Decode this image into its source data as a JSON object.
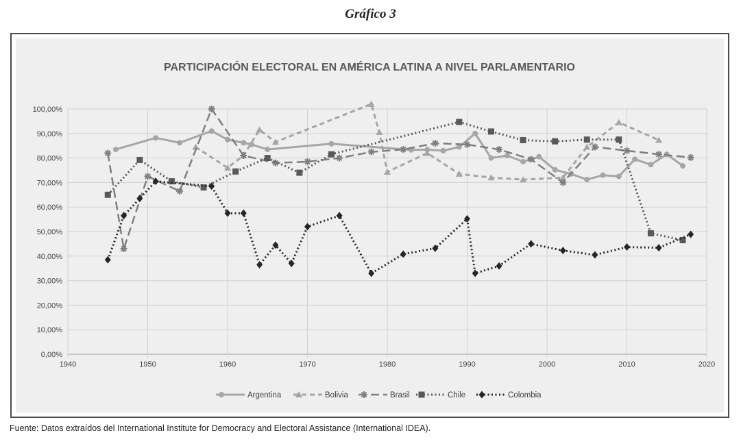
{
  "caption": "Gráfico 3",
  "source": "Fuente: Datos extraídos del International Institute for Democracy and Electoral Assistance (International IDEA).",
  "chart_data": {
    "type": "line",
    "title": "PARTICIPACIÓN ELECTORAL EN AMÉRICA LATINA A NIVEL PARLAMENTARIO",
    "xlabel": "",
    "ylabel": "",
    "xlim": [
      1940,
      2020
    ],
    "ylim": [
      0,
      100
    ],
    "x_ticks": [
      "1940",
      "1950",
      "1960",
      "1970",
      "1980",
      "1990",
      "2000",
      "2010",
      "2020"
    ],
    "y_ticks": [
      "0,00%",
      "10,00%",
      "20,00%",
      "30,00%",
      "40,00%",
      "50,00%",
      "60,00%",
      "70,00%",
      "80,00%",
      "90,00%",
      "100,00%"
    ],
    "grid": true,
    "legend_position": "bottom",
    "series": [
      {
        "name": "Argentina",
        "color": "#a6a6a6",
        "dash": "solid",
        "marker": "circle",
        "points": [
          [
            1946,
            83.5
          ],
          [
            1951,
            88.2
          ],
          [
            1954,
            86.2
          ],
          [
            1958,
            91.0
          ],
          [
            1960,
            87.5
          ],
          [
            1962,
            86.2
          ],
          [
            1963,
            85.5
          ],
          [
            1965,
            83.5
          ],
          [
            1973,
            85.8
          ],
          [
            1983,
            83.3
          ],
          [
            1985,
            83.4
          ],
          [
            1987,
            83.0
          ],
          [
            1989,
            84.5
          ],
          [
            1991,
            90.0
          ],
          [
            1993,
            80.0
          ],
          [
            1995,
            81.0
          ],
          [
            1997,
            78.5
          ],
          [
            1999,
            80.5
          ],
          [
            2001,
            75.2
          ],
          [
            2003,
            73.5
          ],
          [
            2005,
            71.2
          ],
          [
            2007,
            73.0
          ],
          [
            2009,
            72.5
          ],
          [
            2011,
            79.5
          ],
          [
            2013,
            77.3
          ],
          [
            2015,
            81.5
          ],
          [
            2017,
            76.8
          ]
        ]
      },
      {
        "name": "Bolivia",
        "color": "#a6a6a6",
        "dash": "dash",
        "marker": "triangle",
        "points": [
          [
            1956,
            84.5
          ],
          [
            1960,
            76.0
          ],
          [
            1962,
            81.0
          ],
          [
            1964,
            91.5
          ],
          [
            1966,
            86.5
          ],
          [
            1978,
            102.0
          ],
          [
            1979,
            90.5
          ],
          [
            1980,
            74.3
          ],
          [
            1985,
            82.0
          ],
          [
            1989,
            73.5
          ],
          [
            1993,
            72.0
          ],
          [
            1997,
            71.2
          ],
          [
            2002,
            72.0
          ],
          [
            2005,
            84.5
          ],
          [
            2009,
            94.5
          ],
          [
            2014,
            87.3
          ]
        ]
      },
      {
        "name": "Brasil",
        "color": "#7f7f7f",
        "dash": "longdash",
        "marker": "star",
        "points": [
          [
            1945,
            82.0
          ],
          [
            1947,
            43.0
          ],
          [
            1950,
            72.5
          ],
          [
            1954,
            66.5
          ],
          [
            1958,
            100.0
          ],
          [
            1962,
            81.0
          ],
          [
            1966,
            78.0
          ],
          [
            1970,
            78.5
          ],
          [
            1974,
            80.0
          ],
          [
            1978,
            82.5
          ],
          [
            1982,
            83.5
          ],
          [
            1986,
            86.0
          ],
          [
            1990,
            85.5
          ],
          [
            1994,
            83.5
          ],
          [
            1998,
            79.5
          ],
          [
            2002,
            70.0
          ],
          [
            2006,
            84.5
          ],
          [
            2010,
            83.0
          ],
          [
            2014,
            81.5
          ],
          [
            2018,
            80.2
          ]
        ]
      },
      {
        "name": "Chile",
        "color": "#595959",
        "dash": "dot",
        "marker": "square",
        "points": [
          [
            1945,
            65.0
          ],
          [
            1949,
            79.2
          ],
          [
            1953,
            70.5
          ],
          [
            1957,
            68.0
          ],
          [
            1961,
            74.5
          ],
          [
            1965,
            80.0
          ],
          [
            1969,
            74.0
          ],
          [
            1973,
            81.5
          ],
          [
            1989,
            94.7
          ],
          [
            1993,
            90.8
          ],
          [
            1997,
            87.3
          ],
          [
            2001,
            86.8
          ],
          [
            2005,
            87.5
          ],
          [
            2009,
            87.5
          ],
          [
            2013,
            49.3
          ],
          [
            2017,
            46.5
          ]
        ]
      },
      {
        "name": "Colombia",
        "color": "#262626",
        "dash": "dot",
        "marker": "diamond",
        "points": [
          [
            1945,
            38.5
          ],
          [
            1947,
            56.5
          ],
          [
            1949,
            63.5
          ],
          [
            1951,
            70.5
          ],
          [
            1958,
            68.5
          ],
          [
            1960,
            57.5
          ],
          [
            1962,
            57.5
          ],
          [
            1964,
            36.5
          ],
          [
            1966,
            44.5
          ],
          [
            1968,
            37.0
          ],
          [
            1970,
            52.0
          ],
          [
            1974,
            56.5
          ],
          [
            1978,
            33.0
          ],
          [
            1982,
            40.8
          ],
          [
            1986,
            43.2
          ],
          [
            1990,
            55.2
          ],
          [
            1991,
            33.0
          ],
          [
            1994,
            36.0
          ],
          [
            1998,
            45.0
          ],
          [
            2002,
            42.3
          ],
          [
            2006,
            40.5
          ],
          [
            2010,
            43.7
          ],
          [
            2014,
            43.4
          ],
          [
            2018,
            48.9
          ]
        ]
      }
    ]
  }
}
